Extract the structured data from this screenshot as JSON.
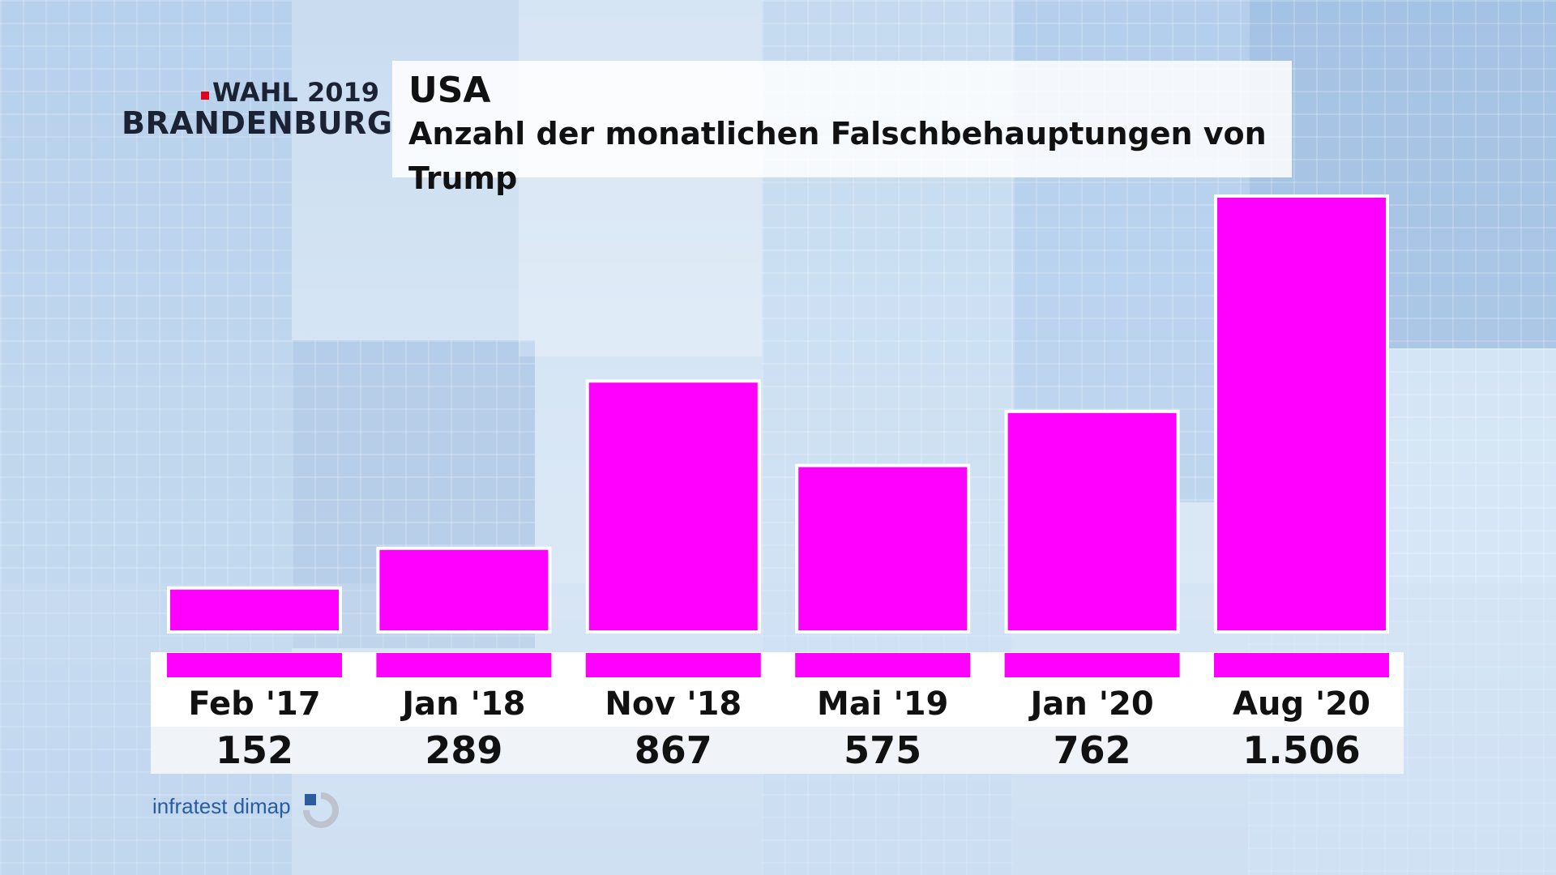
{
  "logo": {
    "line1": "WAHL 2019",
    "line2": "BRANDENBURG",
    "accent": "#e2001a"
  },
  "title": "USA",
  "subtitle": "Anzahl der monatlichen Falschbehauptungen von Trump",
  "source": "infratest dimap",
  "colors": {
    "bar": "#ff00ff",
    "bar_border": "#ffffff"
  },
  "chart_data": {
    "type": "bar",
    "categories": [
      "Feb '17",
      "Jan '18",
      "Nov '18",
      "Mai '19",
      "Jan '20",
      "Aug '20"
    ],
    "values": [
      152,
      289,
      867,
      575,
      762,
      1506
    ],
    "value_labels": [
      "152",
      "289",
      "867",
      "575",
      "762",
      "1.506"
    ],
    "title": "USA",
    "subtitle": "Anzahl der monatlichen Falschbehauptungen von Trump",
    "ylim": [
      0,
      1506
    ],
    "grid": false,
    "legend": "none"
  }
}
